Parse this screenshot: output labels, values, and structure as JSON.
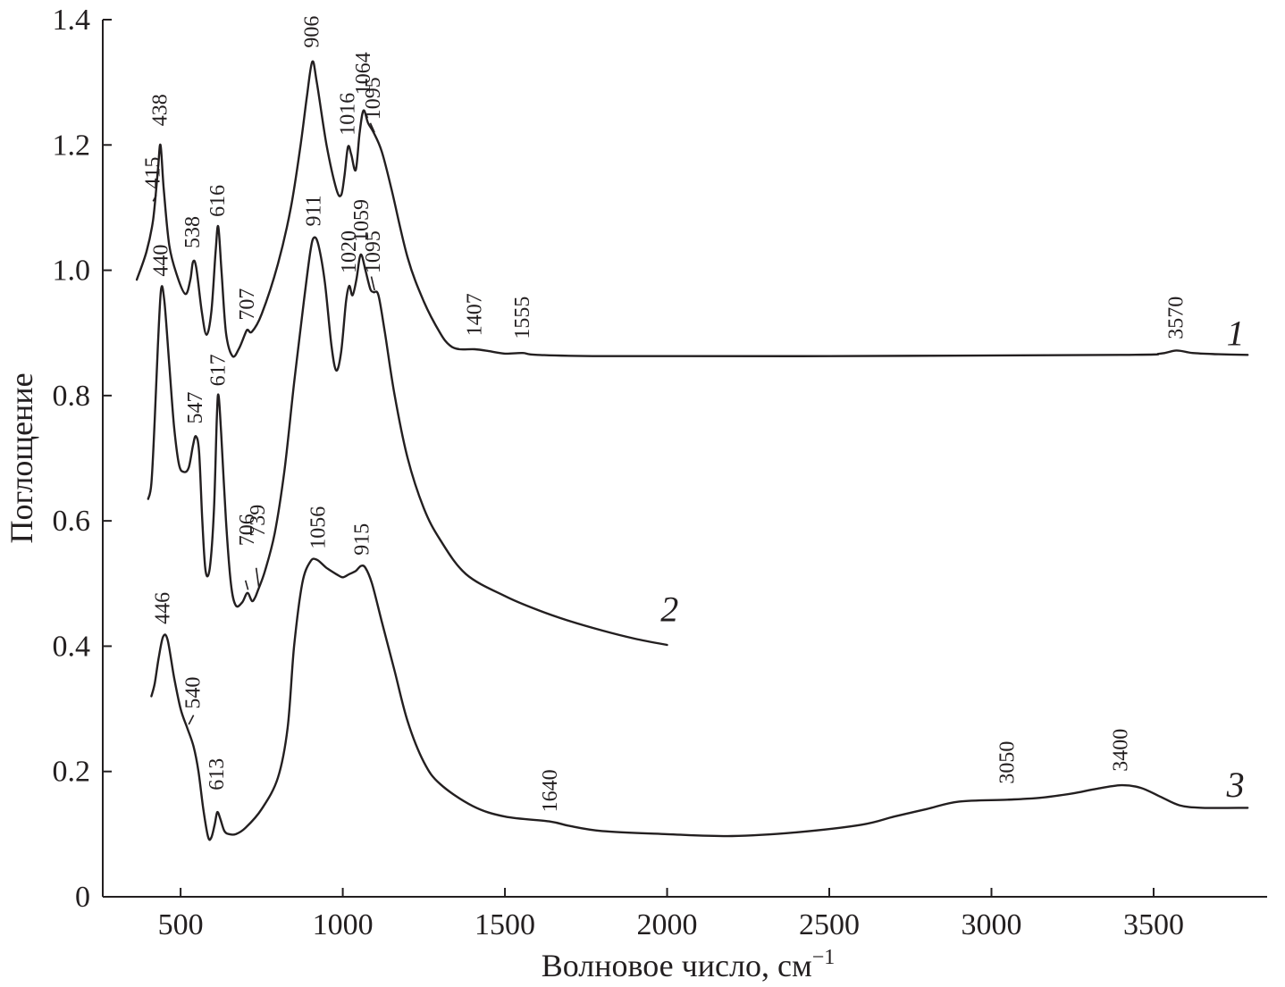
{
  "chart_data": {
    "type": "line",
    "xlabel": "Волновое число, см",
    "xlabel_sup": "−1",
    "ylabel": "Поглощение",
    "xlim": [
      260,
      3850
    ],
    "ylim": [
      0,
      1.4
    ],
    "xticks": [
      500,
      1000,
      1500,
      2000,
      2500,
      3000,
      3500
    ],
    "xtick_labels": [
      "500",
      "1000",
      "1500",
      "2000",
      "2500",
      "3000",
      "3500"
    ],
    "yticks": [
      0,
      0.2,
      0.4,
      0.6,
      0.8,
      1.0,
      1.2,
      1.4
    ],
    "ytick_labels": [
      "0",
      "0.2",
      "0.4",
      "0.6",
      "0.8",
      "1.0",
      "1.2",
      "1.4"
    ],
    "grid": false,
    "series": [
      {
        "name": "1",
        "points": [
          [
            365,
            0.985
          ],
          [
            395,
            1.03
          ],
          [
            415,
            1.08
          ],
          [
            430,
            1.16
          ],
          [
            438,
            1.2
          ],
          [
            448,
            1.13
          ],
          [
            465,
            1.04
          ],
          [
            490,
            0.99
          ],
          [
            515,
            0.962
          ],
          [
            530,
            0.985
          ],
          [
            538,
            1.013
          ],
          [
            548,
            1.005
          ],
          [
            565,
            0.935
          ],
          [
            580,
            0.897
          ],
          [
            595,
            0.935
          ],
          [
            608,
            1.03
          ],
          [
            616,
            1.07
          ],
          [
            626,
            1.0
          ],
          [
            640,
            0.9
          ],
          [
            660,
            0.863
          ],
          [
            680,
            0.875
          ],
          [
            700,
            0.9
          ],
          [
            707,
            0.905
          ],
          [
            720,
            0.902
          ],
          [
            750,
            0.93
          ],
          [
            800,
            1.01
          ],
          [
            840,
            1.1
          ],
          [
            870,
            1.2
          ],
          [
            890,
            1.28
          ],
          [
            906,
            1.333
          ],
          [
            920,
            1.3
          ],
          [
            950,
            1.2
          ],
          [
            980,
            1.13
          ],
          [
            995,
            1.12
          ],
          [
            1005,
            1.15
          ],
          [
            1016,
            1.197
          ],
          [
            1026,
            1.185
          ],
          [
            1040,
            1.16
          ],
          [
            1052,
            1.22
          ],
          [
            1064,
            1.255
          ],
          [
            1078,
            1.235
          ],
          [
            1095,
            1.22
          ],
          [
            1120,
            1.19
          ],
          [
            1150,
            1.13
          ],
          [
            1200,
            1.02
          ],
          [
            1250,
            0.95
          ],
          [
            1300,
            0.9
          ],
          [
            1330,
            0.88
          ],
          [
            1360,
            0.874
          ],
          [
            1407,
            0.874
          ],
          [
            1450,
            0.871
          ],
          [
            1500,
            0.867
          ],
          [
            1555,
            0.868
          ],
          [
            1600,
            0.865
          ],
          [
            1800,
            0.863
          ],
          [
            2500,
            0.863
          ],
          [
            3400,
            0.865
          ],
          [
            3520,
            0.867
          ],
          [
            3570,
            0.872
          ],
          [
            3620,
            0.868
          ],
          [
            3700,
            0.866
          ],
          [
            3790,
            0.865
          ]
        ]
      },
      {
        "name": "2",
        "points": [
          [
            400,
            0.635
          ],
          [
            410,
            0.66
          ],
          [
            420,
            0.76
          ],
          [
            430,
            0.88
          ],
          [
            440,
            0.97
          ],
          [
            450,
            0.95
          ],
          [
            465,
            0.85
          ],
          [
            480,
            0.75
          ],
          [
            495,
            0.69
          ],
          [
            510,
            0.678
          ],
          [
            525,
            0.685
          ],
          [
            538,
            0.72
          ],
          [
            547,
            0.735
          ],
          [
            557,
            0.71
          ],
          [
            567,
            0.6
          ],
          [
            577,
            0.52
          ],
          [
            590,
            0.525
          ],
          [
            603,
            0.62
          ],
          [
            612,
            0.77
          ],
          [
            617,
            0.8
          ],
          [
            625,
            0.74
          ],
          [
            640,
            0.6
          ],
          [
            655,
            0.5
          ],
          [
            670,
            0.465
          ],
          [
            690,
            0.47
          ],
          [
            706,
            0.485
          ],
          [
            720,
            0.472
          ],
          [
            730,
            0.478
          ],
          [
            739,
            0.49
          ],
          [
            760,
            0.52
          ],
          [
            790,
            0.58
          ],
          [
            820,
            0.68
          ],
          [
            850,
            0.82
          ],
          [
            880,
            0.95
          ],
          [
            900,
            1.03
          ],
          [
            911,
            1.052
          ],
          [
            925,
            1.04
          ],
          [
            945,
            0.98
          ],
          [
            965,
            0.88
          ],
          [
            980,
            0.84
          ],
          [
            995,
            0.87
          ],
          [
            1010,
            0.95
          ],
          [
            1020,
            0.975
          ],
          [
            1030,
            0.96
          ],
          [
            1042,
            0.985
          ],
          [
            1052,
            1.02
          ],
          [
            1059,
            1.023
          ],
          [
            1070,
            1.0
          ],
          [
            1085,
            0.97
          ],
          [
            1095,
            0.965
          ],
          [
            1110,
            0.96
          ],
          [
            1130,
            0.9
          ],
          [
            1160,
            0.8
          ],
          [
            1200,
            0.7
          ],
          [
            1250,
            0.62
          ],
          [
            1300,
            0.57
          ],
          [
            1380,
            0.515
          ],
          [
            1500,
            0.48
          ],
          [
            1600,
            0.458
          ],
          [
            1700,
            0.44
          ],
          [
            1800,
            0.425
          ],
          [
            1900,
            0.412
          ],
          [
            2000,
            0.402
          ]
        ]
      },
      {
        "name": "3",
        "points": [
          [
            410,
            0.32
          ],
          [
            420,
            0.34
          ],
          [
            432,
            0.38
          ],
          [
            446,
            0.415
          ],
          [
            460,
            0.41
          ],
          [
            480,
            0.35
          ],
          [
            500,
            0.3
          ],
          [
            520,
            0.27
          ],
          [
            540,
            0.24
          ],
          [
            555,
            0.2
          ],
          [
            570,
            0.14
          ],
          [
            585,
            0.095
          ],
          [
            595,
            0.095
          ],
          [
            605,
            0.115
          ],
          [
            613,
            0.135
          ],
          [
            622,
            0.125
          ],
          [
            635,
            0.105
          ],
          [
            650,
            0.1
          ],
          [
            670,
            0.1
          ],
          [
            700,
            0.11
          ],
          [
            750,
            0.14
          ],
          [
            800,
            0.19
          ],
          [
            830,
            0.27
          ],
          [
            850,
            0.4
          ],
          [
            875,
            0.5
          ],
          [
            900,
            0.535
          ],
          [
            920,
            0.538
          ],
          [
            950,
            0.525
          ],
          [
            980,
            0.515
          ],
          [
            1000,
            0.51
          ],
          [
            1020,
            0.515
          ],
          [
            1040,
            0.52
          ],
          [
            1056,
            0.528
          ],
          [
            1070,
            0.525
          ],
          [
            1090,
            0.5
          ],
          [
            1120,
            0.44
          ],
          [
            1160,
            0.36
          ],
          [
            1200,
            0.28
          ],
          [
            1250,
            0.215
          ],
          [
            1300,
            0.18
          ],
          [
            1400,
            0.145
          ],
          [
            1500,
            0.128
          ],
          [
            1640,
            0.12
          ],
          [
            1700,
            0.113
          ],
          [
            1800,
            0.105
          ],
          [
            2000,
            0.1
          ],
          [
            2200,
            0.097
          ],
          [
            2400,
            0.103
          ],
          [
            2600,
            0.115
          ],
          [
            2700,
            0.128
          ],
          [
            2800,
            0.14
          ],
          [
            2900,
            0.152
          ],
          [
            3050,
            0.155
          ],
          [
            3150,
            0.158
          ],
          [
            3250,
            0.165
          ],
          [
            3320,
            0.172
          ],
          [
            3400,
            0.178
          ],
          [
            3460,
            0.174
          ],
          [
            3520,
            0.16
          ],
          [
            3580,
            0.146
          ],
          [
            3650,
            0.142
          ],
          [
            3790,
            0.142
          ]
        ]
      }
    ],
    "series_labels": [
      {
        "label": "1",
        "x": 3780,
        "y": 0.88
      },
      {
        "label": "2",
        "x": 2035,
        "y": 0.44
      },
      {
        "label": "3",
        "x": 3780,
        "y": 0.16
      }
    ],
    "annotations": [
      {
        "text": "415",
        "x": 415,
        "y": 1.13,
        "leader": [
          [
            415,
            1.11
          ],
          [
            425,
            1.12
          ]
        ]
      },
      {
        "text": "438",
        "x": 438,
        "y": 1.23
      },
      {
        "text": "538",
        "x": 538,
        "y": 1.035
      },
      {
        "text": "616",
        "x": 616,
        "y": 1.085
      },
      {
        "text": "707",
        "x": 707,
        "y": 0.92
      },
      {
        "text": "906",
        "x": 906,
        "y": 1.355
      },
      {
        "text": "1016",
        "x": 1016,
        "y": 1.215
      },
      {
        "text": "1064",
        "x": 1064,
        "y": 1.28
      },
      {
        "text": "1095",
        "x": 1095,
        "y": 1.24,
        "leader": [
          [
            1085,
            1.235
          ],
          [
            1098,
            1.22
          ]
        ]
      },
      {
        "text": "1407",
        "x": 1407,
        "y": 0.895
      },
      {
        "text": "1555",
        "x": 1555,
        "y": 0.89
      },
      {
        "text": "3570",
        "x": 3570,
        "y": 0.89
      },
      {
        "text": "440",
        "x": 440,
        "y": 0.99
      },
      {
        "text": "547",
        "x": 547,
        "y": 0.755
      },
      {
        "text": "617",
        "x": 617,
        "y": 0.815
      },
      {
        "text": "706",
        "x": 706,
        "y": 0.56,
        "leader": [
          [
            700,
            0.505
          ],
          [
            708,
            0.49
          ]
        ]
      },
      {
        "text": "739",
        "x": 739,
        "y": 0.575,
        "leader": [
          [
            733,
            0.525
          ],
          [
            741,
            0.495
          ]
        ]
      },
      {
        "text": "911",
        "x": 911,
        "y": 1.07
      },
      {
        "text": "1020",
        "x": 1020,
        "y": 0.995
      },
      {
        "text": "1059",
        "x": 1059,
        "y": 1.045
      },
      {
        "text": "1095",
        "x": 1095,
        "y": 0.995,
        "leader": [
          [
            1088,
            0.99
          ],
          [
            1098,
            0.968
          ]
        ]
      },
      {
        "text": "1056",
        "x": 925,
        "y": 0.555
      },
      {
        "text": "915",
        "x": 1060,
        "y": 0.545
      },
      {
        "text": "446",
        "x": 446,
        "y": 0.435
      },
      {
        "text": "540",
        "x": 540,
        "y": 0.3,
        "leader": [
          [
            525,
            0.275
          ],
          [
            540,
            0.29
          ]
        ]
      },
      {
        "text": "613",
        "x": 613,
        "y": 0.17
      },
      {
        "text": "1640",
        "x": 1640,
        "y": 0.135
      },
      {
        "text": "3050",
        "x": 3050,
        "y": 0.18
      },
      {
        "text": "3400",
        "x": 3400,
        "y": 0.2
      }
    ]
  }
}
